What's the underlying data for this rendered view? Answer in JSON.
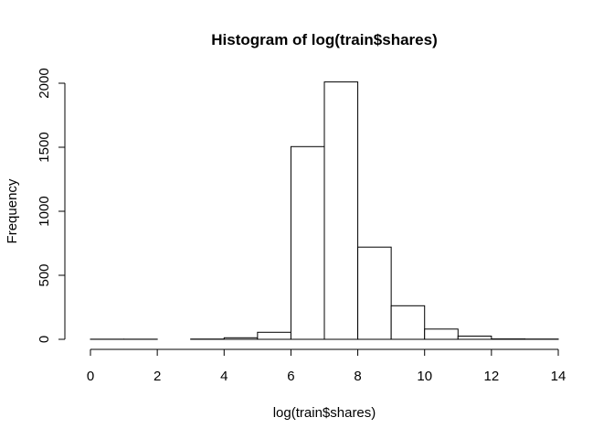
{
  "chart_data": {
    "type": "bar",
    "title": "Histogram of log(train$shares)",
    "xlabel": "log(train$shares)",
    "ylabel": "Frequency",
    "xlim": [
      0,
      14
    ],
    "ylim": [
      0,
      2000
    ],
    "xticks": [
      0,
      2,
      4,
      6,
      8,
      10,
      12,
      14
    ],
    "yticks": [
      0,
      500,
      1000,
      1500,
      2000
    ],
    "bins": [
      {
        "start": 0,
        "end": 1,
        "count": 1
      },
      {
        "start": 1,
        "end": 2,
        "count": 1
      },
      {
        "start": 2,
        "end": 3,
        "count": 0
      },
      {
        "start": 3,
        "end": 4,
        "count": 2
      },
      {
        "start": 4,
        "end": 5,
        "count": 12
      },
      {
        "start": 5,
        "end": 6,
        "count": 55
      },
      {
        "start": 6,
        "end": 7,
        "count": 1505
      },
      {
        "start": 7,
        "end": 8,
        "count": 2010
      },
      {
        "start": 8,
        "end": 9,
        "count": 720
      },
      {
        "start": 9,
        "end": 10,
        "count": 262
      },
      {
        "start": 10,
        "end": 11,
        "count": 80
      },
      {
        "start": 11,
        "end": 12,
        "count": 25
      },
      {
        "start": 12,
        "end": 13,
        "count": 3
      },
      {
        "start": 13,
        "end": 14,
        "count": 2
      }
    ],
    "grid": false
  }
}
